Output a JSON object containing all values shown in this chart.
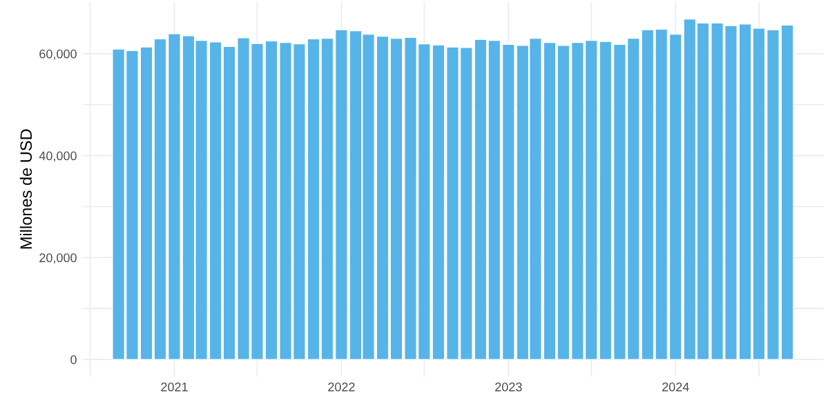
{
  "chart_data": {
    "type": "bar",
    "ylabel": "Millones de USD",
    "x": [
      "2020-09",
      "2020-10",
      "2020-11",
      "2020-12",
      "2021-01",
      "2021-02",
      "2021-03",
      "2021-04",
      "2021-05",
      "2021-06",
      "2021-07",
      "2021-08",
      "2021-09",
      "2021-10",
      "2021-11",
      "2021-12",
      "2022-01",
      "2022-02",
      "2022-03",
      "2022-04",
      "2022-05",
      "2022-06",
      "2022-07",
      "2022-08",
      "2022-09",
      "2022-10",
      "2022-11",
      "2022-12",
      "2023-01",
      "2023-02",
      "2023-03",
      "2023-04",
      "2023-05",
      "2023-06",
      "2023-07",
      "2023-08",
      "2023-09",
      "2023-10",
      "2023-11",
      "2023-12",
      "2024-01",
      "2024-02",
      "2024-03",
      "2024-04",
      "2024-05",
      "2024-06",
      "2024-07",
      "2024-08",
      "2024-09"
    ],
    "values": [
      60900,
      60600,
      61300,
      62900,
      63900,
      63500,
      62600,
      62300,
      61400,
      63100,
      62000,
      62500,
      62200,
      61900,
      62900,
      63000,
      64700,
      64500,
      63800,
      63400,
      63000,
      63200,
      61900,
      61700,
      61300,
      61200,
      62800,
      62600,
      61800,
      61600,
      63000,
      62200,
      61600,
      62200,
      62600,
      62400,
      61800,
      63000,
      64700,
      64800,
      63800,
      66800,
      66000,
      66000,
      65500,
      65800,
      65000,
      64700,
      65600
    ],
    "color": "#56b4e9",
    "xlim": [
      "2020-06-15",
      "2024-11-20"
    ],
    "xticks": [
      {
        "value": "2020-07-01",
        "label": null
      },
      {
        "value": "2021-01-01",
        "label": "2021"
      },
      {
        "value": "2021-07-01",
        "label": null
      },
      {
        "value": "2022-01-01",
        "label": "2022"
      },
      {
        "value": "2022-07-01",
        "label": null
      },
      {
        "value": "2023-01-01",
        "label": "2023"
      },
      {
        "value": "2023-07-01",
        "label": null
      },
      {
        "value": "2024-01-01",
        "label": "2024"
      },
      {
        "value": "2024-07-01",
        "label": null
      }
    ],
    "ylim": [
      -3340,
      70140
    ],
    "yticks": [
      {
        "value": 0,
        "label": "0"
      },
      {
        "value": 10000,
        "label": null
      },
      {
        "value": 20000,
        "label": "20,000"
      },
      {
        "value": 30000,
        "label": null
      },
      {
        "value": 40000,
        "label": "40,000"
      },
      {
        "value": 50000,
        "label": null
      },
      {
        "value": 60000,
        "label": "60,000"
      }
    ],
    "grid": true,
    "legend": false
  }
}
